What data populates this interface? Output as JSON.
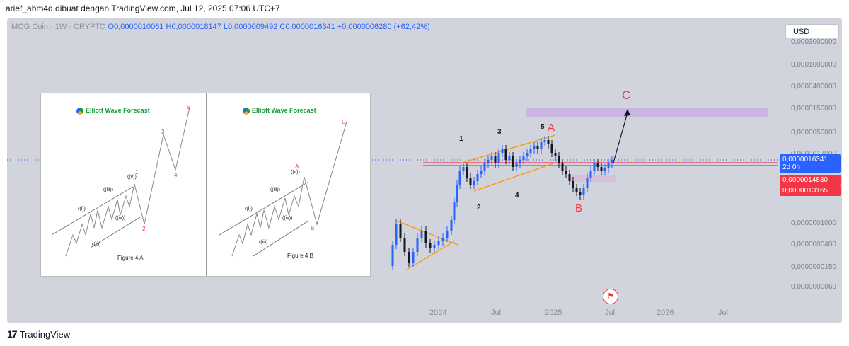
{
  "header": {
    "text": "arief_ahm4d dibuat dengan TradingView.com, Jul 12, 2025 07:06 UTC+7"
  },
  "legend": {
    "symbol": "MOG Coin · 1W · CRYPTO",
    "o": "O0,0000010061",
    "h": "H0,0000018147",
    "l": "L0,0000009492",
    "c": "C0,0000016341",
    "change": "+0,0000006280 (+62,42%)"
  },
  "currency_button": "USD",
  "price_axis": {
    "ticks": [
      "0,0003000000",
      "0,0001000000",
      "0,0000400000",
      "0,0000150000",
      "0,0000050000",
      "0,0000017000",
      "0,0000001000",
      "0,0000000400",
      "0,0000000150",
      "0,0000000060"
    ],
    "tags": [
      {
        "value": "0,0000016341",
        "sub": "2d 0h",
        "color": "#2962ff"
      },
      {
        "value": "0,0000014830",
        "color": "#f23645"
      },
      {
        "value": "0,0000013165",
        "color": "#f23645"
      }
    ]
  },
  "time_axis": [
    "2024",
    "Jul",
    "2025",
    "Jul",
    "2026",
    "Jul"
  ],
  "annotations": {
    "wave_1": "1",
    "wave_2": "2",
    "wave_3": "3",
    "wave_4": "4",
    "wave_5": "5",
    "wave_a": "A",
    "wave_b": "B",
    "wave_c": "C"
  },
  "inset": {
    "brand": "Elliott Wave Forecast",
    "fig_a": {
      "caption": "Figure 4 A",
      "labels": [
        "((i))",
        "((ii))",
        "((iii))",
        "((iv))",
        "((v))",
        "1",
        "2",
        "3",
        "4",
        "5"
      ]
    },
    "fig_b": {
      "caption": "Figure 4 B",
      "labels": [
        "((i))",
        "((ii))",
        "((iii))",
        "((iv))",
        "((v))",
        "A",
        "B",
        "C"
      ]
    }
  },
  "footer": {
    "brand": "TradingView"
  },
  "chart_data": {
    "type": "candlestick",
    "symbol": "MOG Coin",
    "interval": "1W",
    "scale": "log",
    "x": [
      "2024",
      "Jul",
      "2025",
      "Jul",
      "2026",
      "Jul"
    ],
    "last_close": 1.6341e-06,
    "ohlc_last": {
      "open": 1.0061e-06,
      "high": 1.8147e-06,
      "low": 9.492e-07,
      "close": 1.6341e-06
    },
    "change": 6.28e-07,
    "change_pct": 62.42,
    "horizontal_levels": [
      1.483e-06,
      1.3165e-06
    ],
    "target_zone_label": "C",
    "colors": {
      "up": "#2962ff",
      "down": "#131722",
      "resistance": "#f23645",
      "target_zone": "#c9a9e6",
      "channel": "#ff9800"
    }
  }
}
